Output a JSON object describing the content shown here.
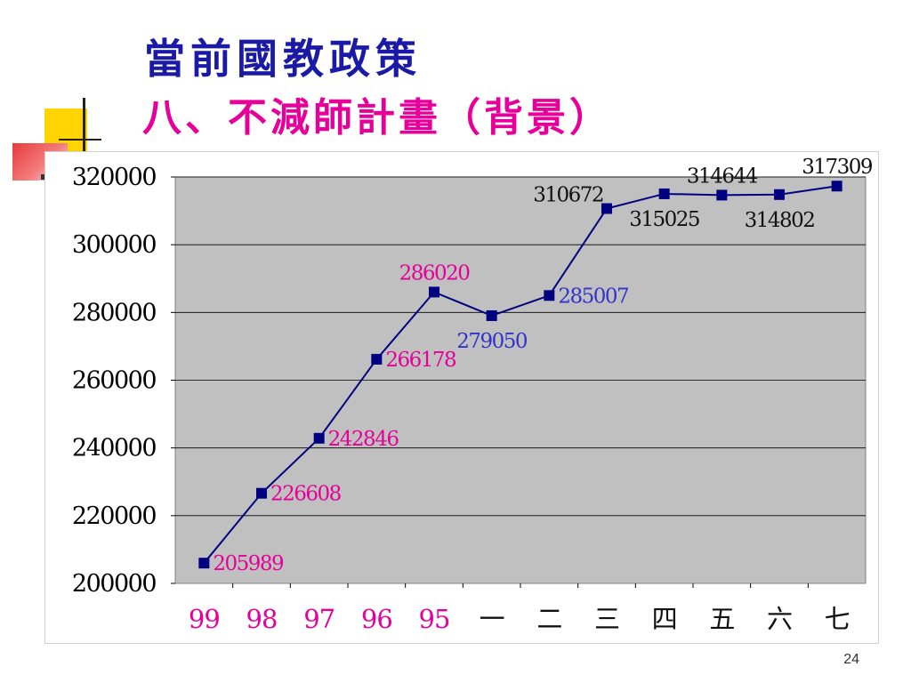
{
  "slide": {
    "title": "當前國教政策",
    "subtitle": "八、不減師計畫（背景）",
    "page_number": "24"
  },
  "colors": {
    "title": "#1a1aa6",
    "subtitle": "#e60099",
    "plot_bg": "#c0c0c0",
    "line": "#000080",
    "label_magenta": "#e60099",
    "label_blue": "#3333cc",
    "label_black": "#111111",
    "category_pink": "#e60099",
    "category_black": "#111111"
  },
  "chart_data": {
    "type": "line",
    "title": "",
    "xlabel": "",
    "ylabel": "",
    "categories": [
      "99",
      "98",
      "97",
      "96",
      "95",
      "一",
      "二",
      "三",
      "四",
      "五",
      "六",
      "七"
    ],
    "category_colors": [
      "pink",
      "pink",
      "pink",
      "pink",
      "pink",
      "black",
      "black",
      "black",
      "black",
      "black",
      "black",
      "black"
    ],
    "series": [
      {
        "values": [
          205989,
          226608,
          242846,
          266178,
          286020,
          279050,
          285007,
          310672,
          315025,
          314644,
          314802,
          317309
        ]
      }
    ],
    "data_labels": [
      "205989",
      "226608",
      "242846",
      "266178",
      "286020",
      "279050",
      "285007",
      "310672",
      "315025",
      "314644",
      "314802",
      "317309"
    ],
    "label_colors": [
      "magenta",
      "magenta",
      "magenta",
      "magenta",
      "magenta",
      "blue",
      "blue",
      "black",
      "black",
      "black",
      "black",
      "black"
    ],
    "label_positions": [
      "right",
      "right",
      "right",
      "right",
      "above",
      "below",
      "right",
      "above-left",
      "below",
      "above",
      "below",
      "above"
    ],
    "ylim": [
      200000,
      320000
    ],
    "yticks": [
      200000,
      220000,
      240000,
      260000,
      280000,
      300000,
      320000
    ],
    "ytick_labels": [
      "200000",
      "220000",
      "240000",
      "260000",
      "280000",
      "300000",
      "320000"
    ],
    "grid": true,
    "legend": "none"
  }
}
